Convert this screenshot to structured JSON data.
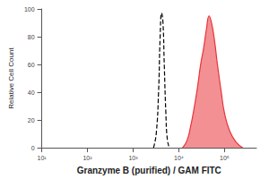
{
  "chart_data": {
    "type": "line",
    "x_label": "Granzyme B (purified) / GAM FITC",
    "y_label": "Relative Cell Count",
    "log": "x",
    "grid": false,
    "xlim": [
      10,
      500000
    ],
    "xticks": [
      {
        "value": 10,
        "label": "10¹"
      },
      {
        "value": 100,
        "label": "10²"
      },
      {
        "value": 1000,
        "label": "10³"
      },
      {
        "value": 10000,
        "label": "10⁴"
      },
      {
        "value": 100000,
        "label": "10⁵"
      }
    ],
    "ylim": [
      0,
      100
    ],
    "yticks": [
      0,
      20,
      40,
      60,
      80,
      100
    ],
    "series": [
      {
        "type": "line",
        "line_style": "dashed",
        "color": "#000000",
        "x": [
          2800,
          3200,
          3600,
          3900,
          4200,
          4500,
          4800,
          5200,
          5600,
          6200
        ],
        "values": [
          0,
          10,
          40,
          80,
          97,
          90,
          60,
          25,
          6,
          0
        ]
      },
      {
        "type": "area",
        "line_style": "solid",
        "color": "#e8343a",
        "x": [
          12000,
          15000,
          18000,
          22000,
          26000,
          30000,
          35000,
          40000,
          46000,
          52000,
          60000,
          70000,
          85000,
          100000,
          130000,
          180000,
          250000
        ],
        "values": [
          0,
          5,
          15,
          30,
          45,
          60,
          72,
          85,
          95,
          90,
          78,
          60,
          40,
          25,
          12,
          4,
          0
        ]
      }
    ]
  }
}
